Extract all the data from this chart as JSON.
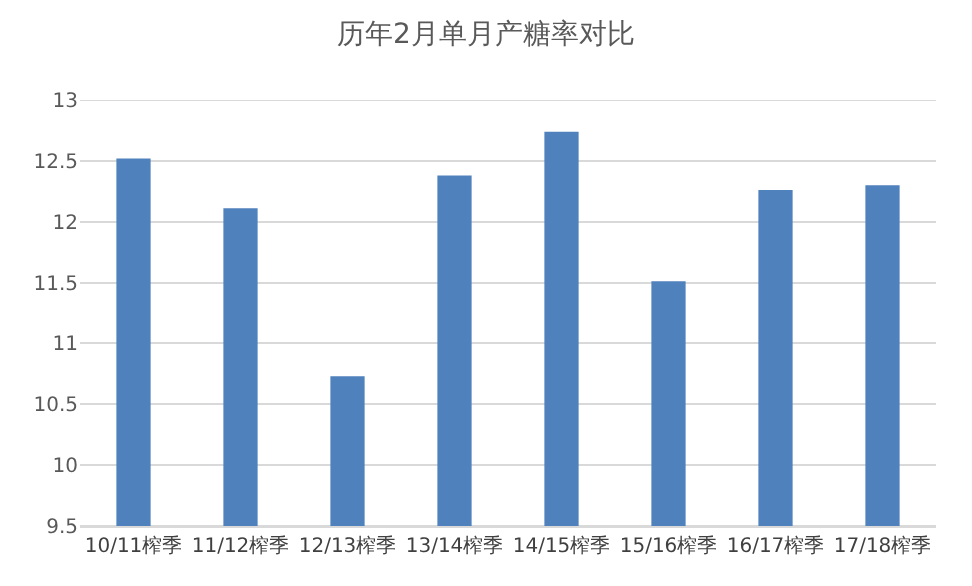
{
  "chart_data": {
    "type": "bar",
    "title": "历年2月单月产糖率对比",
    "categories": [
      "10/11榨季",
      "11/12榨季",
      "12/13榨季",
      "13/14榨季",
      "14/15榨季",
      "15/16榨季",
      "16/17榨季",
      "17/18榨季"
    ],
    "values": [
      12.52,
      12.11,
      10.73,
      12.38,
      12.74,
      11.51,
      12.26,
      12.3
    ],
    "color": "#4f81bd",
    "ylim": [
      9.5,
      13
    ],
    "yticks": [
      9.5,
      10,
      10.5,
      11,
      11.5,
      12,
      12.5,
      13
    ],
    "grid": "y"
  }
}
